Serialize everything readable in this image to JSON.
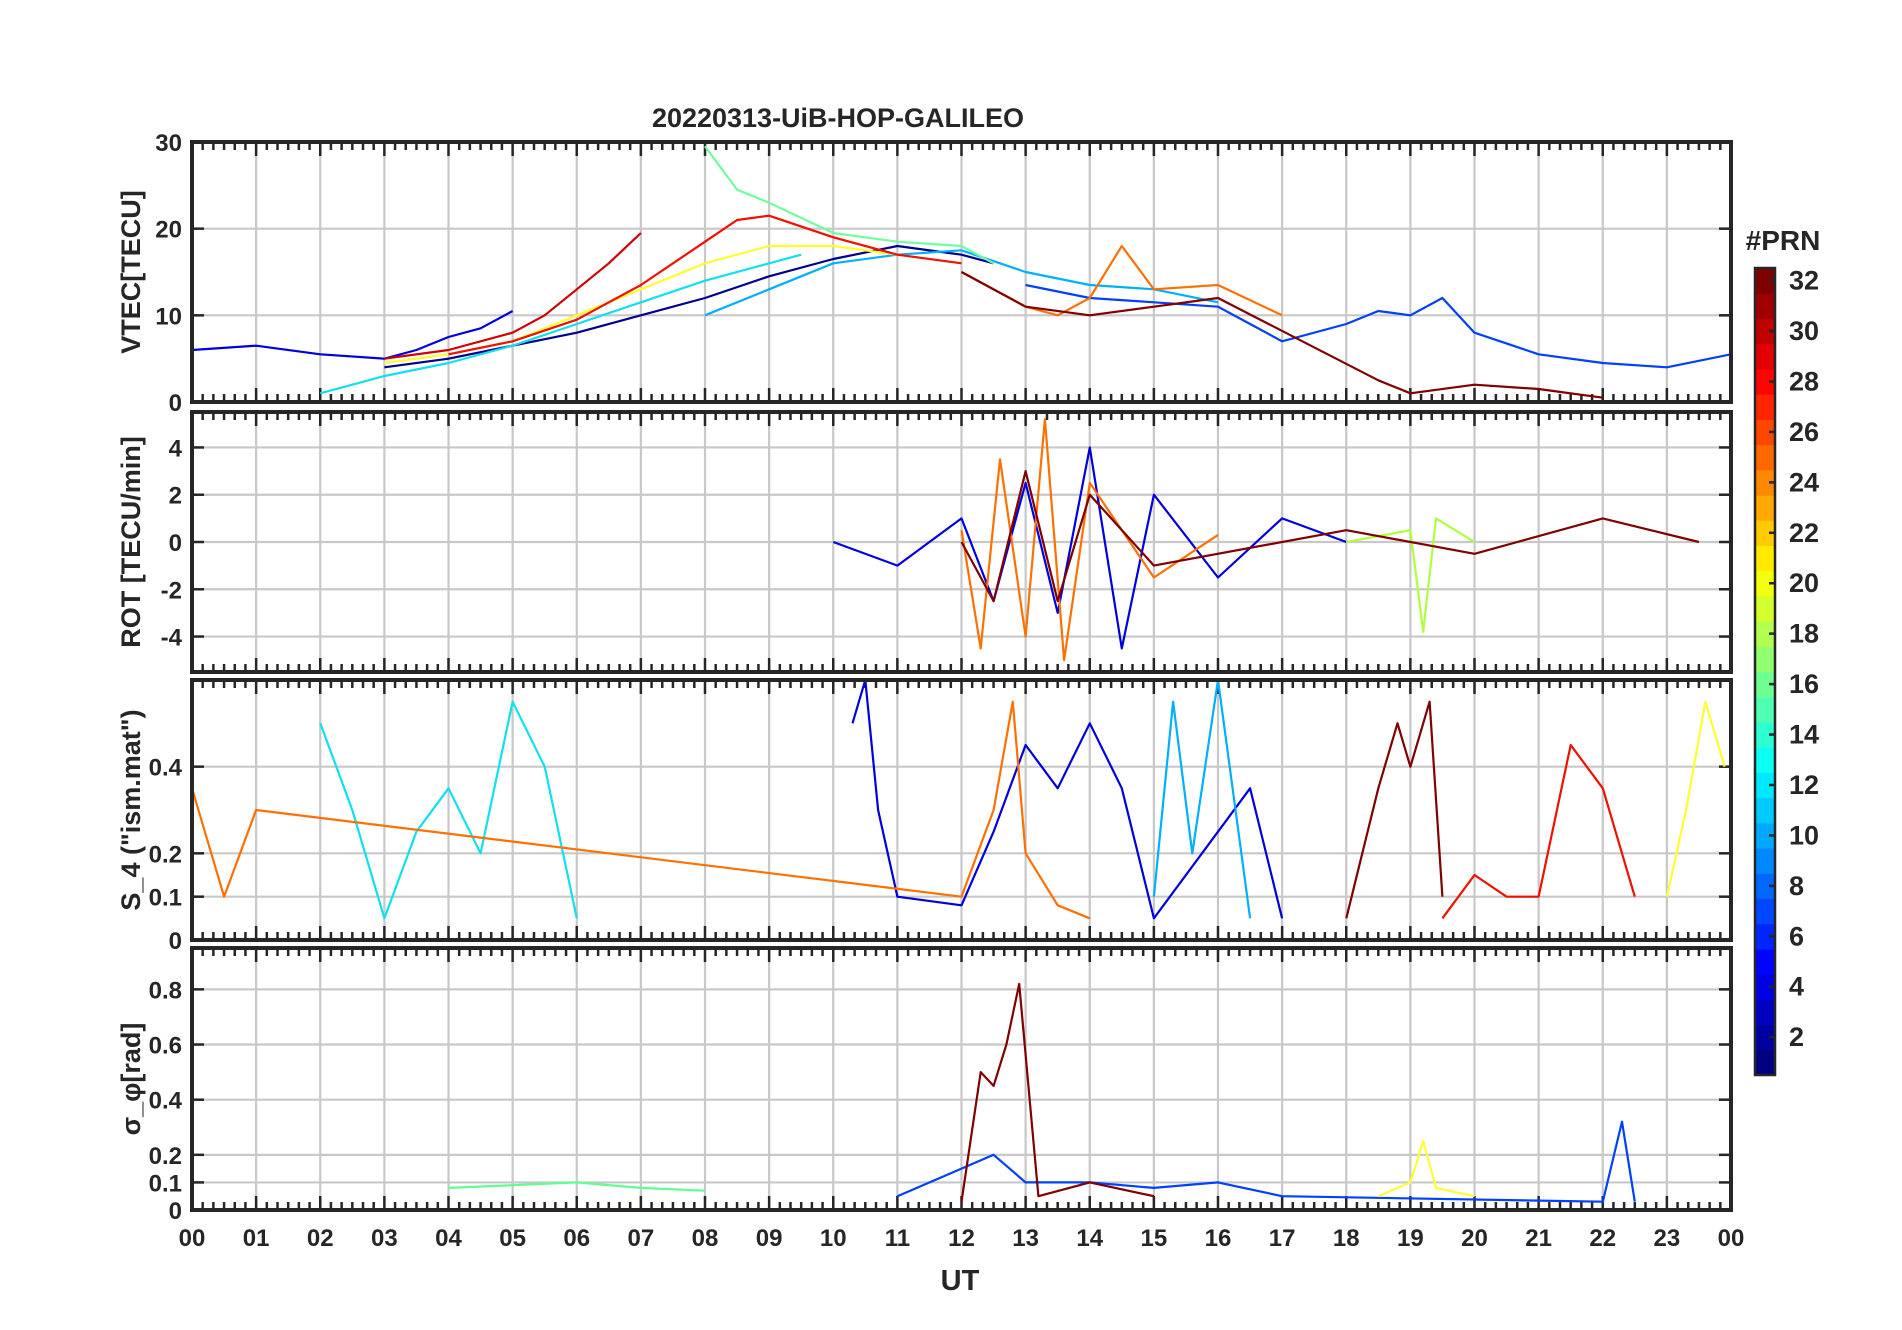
{
  "figure": {
    "title": "20220313-UiB-HOP-GALILEO",
    "colors": {
      "frame": "#262626",
      "grid": "#c8c8c8",
      "background": "#ffffff"
    }
  },
  "chart_data": [
    {
      "type": "line",
      "panel": "vtec",
      "ylabel": "VTEC[TECU]",
      "ylim": [
        0,
        30
      ],
      "yticks": [
        0,
        10,
        20,
        30
      ],
      "xlabel": "",
      "xlim": [
        0,
        24
      ],
      "grid": true,
      "series": [
        {
          "name": "PRN 2",
          "color": "#00008f",
          "x": [
            3.0,
            4.0,
            5.0,
            6.0,
            7.0,
            8.0,
            9.0,
            10.0,
            11.0,
            12.0,
            12.5
          ],
          "y": [
            4.0,
            5.0,
            6.5,
            8.0,
            10.0,
            12.0,
            14.5,
            16.5,
            18.0,
            17.0,
            16.0
          ]
        },
        {
          "name": "PRN 4",
          "color": "#0000df",
          "x": [
            0.0,
            1.0,
            2.0,
            3.0,
            3.5,
            4.0,
            4.5,
            5.0
          ],
          "y": [
            6.0,
            6.5,
            5.5,
            5.0,
            6.0,
            7.5,
            8.5,
            10.5
          ]
        },
        {
          "name": "PRN 6",
          "color": "#0040ff",
          "x": [
            13.0,
            14.0,
            15.0,
            16.0,
            16.5,
            17.0,
            18.0,
            18.5,
            19.0,
            19.5,
            20.0,
            21.0,
            22.0,
            23.0,
            24.0
          ],
          "y": [
            13.5,
            12.0,
            11.5,
            11.0,
            9.0,
            7.0,
            9.0,
            10.5,
            10.0,
            12.0,
            8.0,
            5.5,
            4.5,
            4.0,
            5.5
          ]
        },
        {
          "name": "PRN 10",
          "color": "#00b0ff",
          "x": [
            8.0,
            9.0,
            10.0,
            11.0,
            12.0,
            13.0,
            14.0,
            15.0,
            16.0
          ],
          "y": [
            10.0,
            13.0,
            16.0,
            17.0,
            17.5,
            15.0,
            13.5,
            13.0,
            11.5
          ]
        },
        {
          "name": "PRN 12",
          "color": "#10e0ef",
          "x": [
            2.0,
            3.0,
            4.0,
            5.0,
            6.0,
            7.0,
            8.0,
            9.0,
            9.5
          ],
          "y": [
            1.0,
            3.0,
            4.5,
            6.5,
            9.0,
            11.5,
            14.0,
            16.0,
            17.0
          ]
        },
        {
          "name": "PRN 15",
          "color": "#70ffa0",
          "x": [
            8.0,
            8.5,
            9.0,
            10.0,
            11.0,
            12.0,
            12.5
          ],
          "y": [
            29.5,
            24.5,
            23.0,
            19.5,
            18.5,
            18.0,
            16.0
          ]
        },
        {
          "name": "PRN 20",
          "color": "#ffff30",
          "x": [
            3.0,
            4.0,
            5.0,
            6.0,
            7.0,
            8.0,
            9.0,
            10.0,
            11.0
          ],
          "y": [
            4.5,
            5.5,
            7.0,
            10.0,
            13.0,
            16.0,
            18.0,
            18.0,
            17.0
          ]
        },
        {
          "name": "PRN 24",
          "color": "#ff7000",
          "x": [
            12.0,
            13.0,
            13.5,
            14.0,
            14.5,
            15.0,
            16.0,
            17.0
          ],
          "y": [
            15.0,
            11.0,
            10.0,
            12.0,
            18.0,
            13.0,
            13.5,
            10.0
          ]
        },
        {
          "name": "PRN 27",
          "color": "#ef1000",
          "x": [
            4.0,
            5.0,
            6.0,
            7.0,
            8.0,
            8.5,
            9.0,
            10.0,
            11.0,
            12.0
          ],
          "y": [
            5.5,
            7.0,
            9.5,
            13.5,
            18.5,
            21.0,
            21.5,
            19.0,
            17.0,
            16.0
          ]
        },
        {
          "name": "PRN 30",
          "color": "#cf0000",
          "x": [
            3.0,
            4.0,
            5.0,
            5.5,
            6.0,
            6.5,
            7.0
          ],
          "y": [
            5.0,
            6.0,
            8.0,
            10.0,
            13.0,
            16.0,
            19.5
          ]
        },
        {
          "name": "PRN 32",
          "color": "#800000",
          "x": [
            12.0,
            13.0,
            14.0,
            15.0,
            16.0,
            18.5,
            19.0,
            20.0,
            21.0,
            22.0
          ],
          "y": [
            15.0,
            11.0,
            10.0,
            11.0,
            12.0,
            2.5,
            1.0,
            2.0,
            1.5,
            0.5
          ]
        }
      ]
    },
    {
      "type": "line",
      "panel": "rot",
      "ylabel": "ROT [TECU/min]",
      "ylim": [
        -5.5,
        5.5
      ],
      "yticks": [
        -4,
        -2,
        0,
        2,
        4
      ],
      "xlabel": "",
      "xlim": [
        0,
        24
      ],
      "grid": true,
      "series": [
        {
          "name": "PRN 4",
          "color": "#0000df",
          "x": [
            10.0,
            11.0,
            12.0,
            12.5,
            13.0,
            13.5,
            14.0,
            14.5,
            15.0,
            16.0,
            17.0,
            18.0
          ],
          "y": [
            0.0,
            -1.0,
            1.0,
            -2.5,
            2.5,
            -3.0,
            4.0,
            -4.5,
            2.0,
            -1.5,
            1.0,
            0.0
          ]
        },
        {
          "name": "PRN 18",
          "color": "#b0ff40",
          "x": [
            18.0,
            19.0,
            19.2,
            19.4,
            20.0
          ],
          "y": [
            0.0,
            0.5,
            -3.8,
            1.0,
            0.0
          ]
        },
        {
          "name": "PRN 24",
          "color": "#ff7000",
          "x": [
            12.0,
            12.3,
            12.6,
            13.0,
            13.3,
            13.6,
            14.0,
            15.0,
            16.0
          ],
          "y": [
            0.5,
            -4.5,
            3.5,
            -4.0,
            5.2,
            -5.0,
            2.5,
            -1.5,
            0.3
          ]
        },
        {
          "name": "PRN 32",
          "color": "#800000",
          "x": [
            12.0,
            12.5,
            13.0,
            13.5,
            14.0,
            15.0,
            18.0,
            20.0,
            22.0,
            23.5
          ],
          "y": [
            0.0,
            -2.5,
            3.0,
            -2.5,
            2.0,
            -1.0,
            0.5,
            -0.5,
            1.0,
            0.0
          ]
        }
      ]
    },
    {
      "type": "line",
      "panel": "s4",
      "ylabel": "S_4 (\"ism.mat\")",
      "ylim": [
        0,
        0.6
      ],
      "yticks": [
        0,
        0.1,
        0.2,
        0.4
      ],
      "xlabel": "",
      "xlim": [
        0,
        24
      ],
      "grid": true,
      "series": [
        {
          "name": "PRN 4",
          "color": "#0000df",
          "x": [
            10.3,
            10.5,
            10.7,
            11.0,
            12.0,
            12.5,
            13.0,
            13.5,
            14.0,
            14.5,
            15.0,
            16.5,
            17.0
          ],
          "y": [
            0.5,
            0.6,
            0.3,
            0.1,
            0.08,
            0.25,
            0.45,
            0.35,
            0.5,
            0.35,
            0.05,
            0.35,
            0.05
          ]
        },
        {
          "name": "PRN 10",
          "color": "#00b0ff",
          "x": [
            15.0,
            15.3,
            15.6,
            16.0,
            16.5
          ],
          "y": [
            0.1,
            0.55,
            0.2,
            0.6,
            0.05
          ]
        },
        {
          "name": "PRN 12",
          "color": "#10e0ef",
          "x": [
            2.0,
            2.5,
            3.0,
            3.5,
            4.0,
            4.5,
            5.0,
            5.5,
            6.0
          ],
          "y": [
            0.5,
            0.3,
            0.05,
            0.25,
            0.35,
            0.2,
            0.55,
            0.4,
            0.05
          ]
        },
        {
          "name": "PRN 20",
          "color": "#ffff30",
          "x": [
            23.0,
            23.3,
            23.6,
            23.9
          ],
          "y": [
            0.1,
            0.3,
            0.55,
            0.4
          ]
        },
        {
          "name": "PRN 24",
          "color": "#ff7000",
          "x": [
            0.0,
            0.5,
            1.0,
            12.0,
            12.5,
            12.8,
            13.0,
            13.5,
            14.0
          ],
          "y": [
            0.35,
            0.1,
            0.3,
            0.1,
            0.3,
            0.55,
            0.2,
            0.08,
            0.05
          ]
        },
        {
          "name": "PRN 27",
          "color": "#ef1000",
          "x": [
            19.5,
            20.0,
            20.5,
            21.0,
            21.5,
            22.0,
            22.5
          ],
          "y": [
            0.05,
            0.15,
            0.1,
            0.1,
            0.45,
            0.35,
            0.1
          ]
        },
        {
          "name": "PRN 32",
          "color": "#800000",
          "x": [
            18.0,
            18.5,
            18.8,
            19.0,
            19.3,
            19.5
          ],
          "y": [
            0.05,
            0.35,
            0.5,
            0.4,
            0.55,
            0.1
          ]
        }
      ]
    },
    {
      "type": "line",
      "panel": "sigma_phi",
      "ylabel": "σ_φ[rad]",
      "ylim": [
        0,
        0.95
      ],
      "yticks": [
        0,
        0.1,
        0.2,
        0.4,
        0.6,
        0.8
      ],
      "xlabel": "UT",
      "xlim": [
        0,
        24
      ],
      "xticks": [
        "00",
        "01",
        "02",
        "03",
        "04",
        "05",
        "06",
        "07",
        "08",
        "09",
        "10",
        "11",
        "12",
        "13",
        "14",
        "15",
        "16",
        "17",
        "18",
        "19",
        "20",
        "21",
        "22",
        "23",
        "00"
      ],
      "grid": true,
      "series": [
        {
          "name": "PRN 6",
          "color": "#0040ff",
          "x": [
            11.0,
            12.0,
            12.5,
            13.0,
            14.0,
            15.0,
            16.0,
            17.0,
            22.0,
            22.3,
            22.5
          ],
          "y": [
            0.05,
            0.15,
            0.2,
            0.1,
            0.1,
            0.08,
            0.1,
            0.05,
            0.03,
            0.32,
            0.03
          ]
        },
        {
          "name": "PRN 16",
          "color": "#60ff90",
          "x": [
            4.0,
            5.0,
            6.0,
            7.0,
            8.0
          ],
          "y": [
            0.08,
            0.09,
            0.1,
            0.08,
            0.07
          ]
        },
        {
          "name": "PRN 20",
          "color": "#ffff30",
          "x": [
            18.5,
            19.0,
            19.2,
            19.4,
            20.0
          ],
          "y": [
            0.05,
            0.1,
            0.25,
            0.08,
            0.05
          ]
        },
        {
          "name": "PRN 32",
          "color": "#800000",
          "x": [
            12.0,
            12.3,
            12.5,
            12.7,
            12.9,
            13.2,
            14.0,
            15.0
          ],
          "y": [
            0.03,
            0.5,
            0.45,
            0.6,
            0.82,
            0.05,
            0.1,
            0.05
          ]
        }
      ]
    }
  ],
  "colorbar": {
    "label": "#PRN",
    "range": [
      1,
      32
    ],
    "ticks": [
      2,
      4,
      6,
      8,
      10,
      12,
      14,
      16,
      18,
      20,
      22,
      24,
      26,
      28,
      30,
      32
    ],
    "colormap": "jet"
  }
}
